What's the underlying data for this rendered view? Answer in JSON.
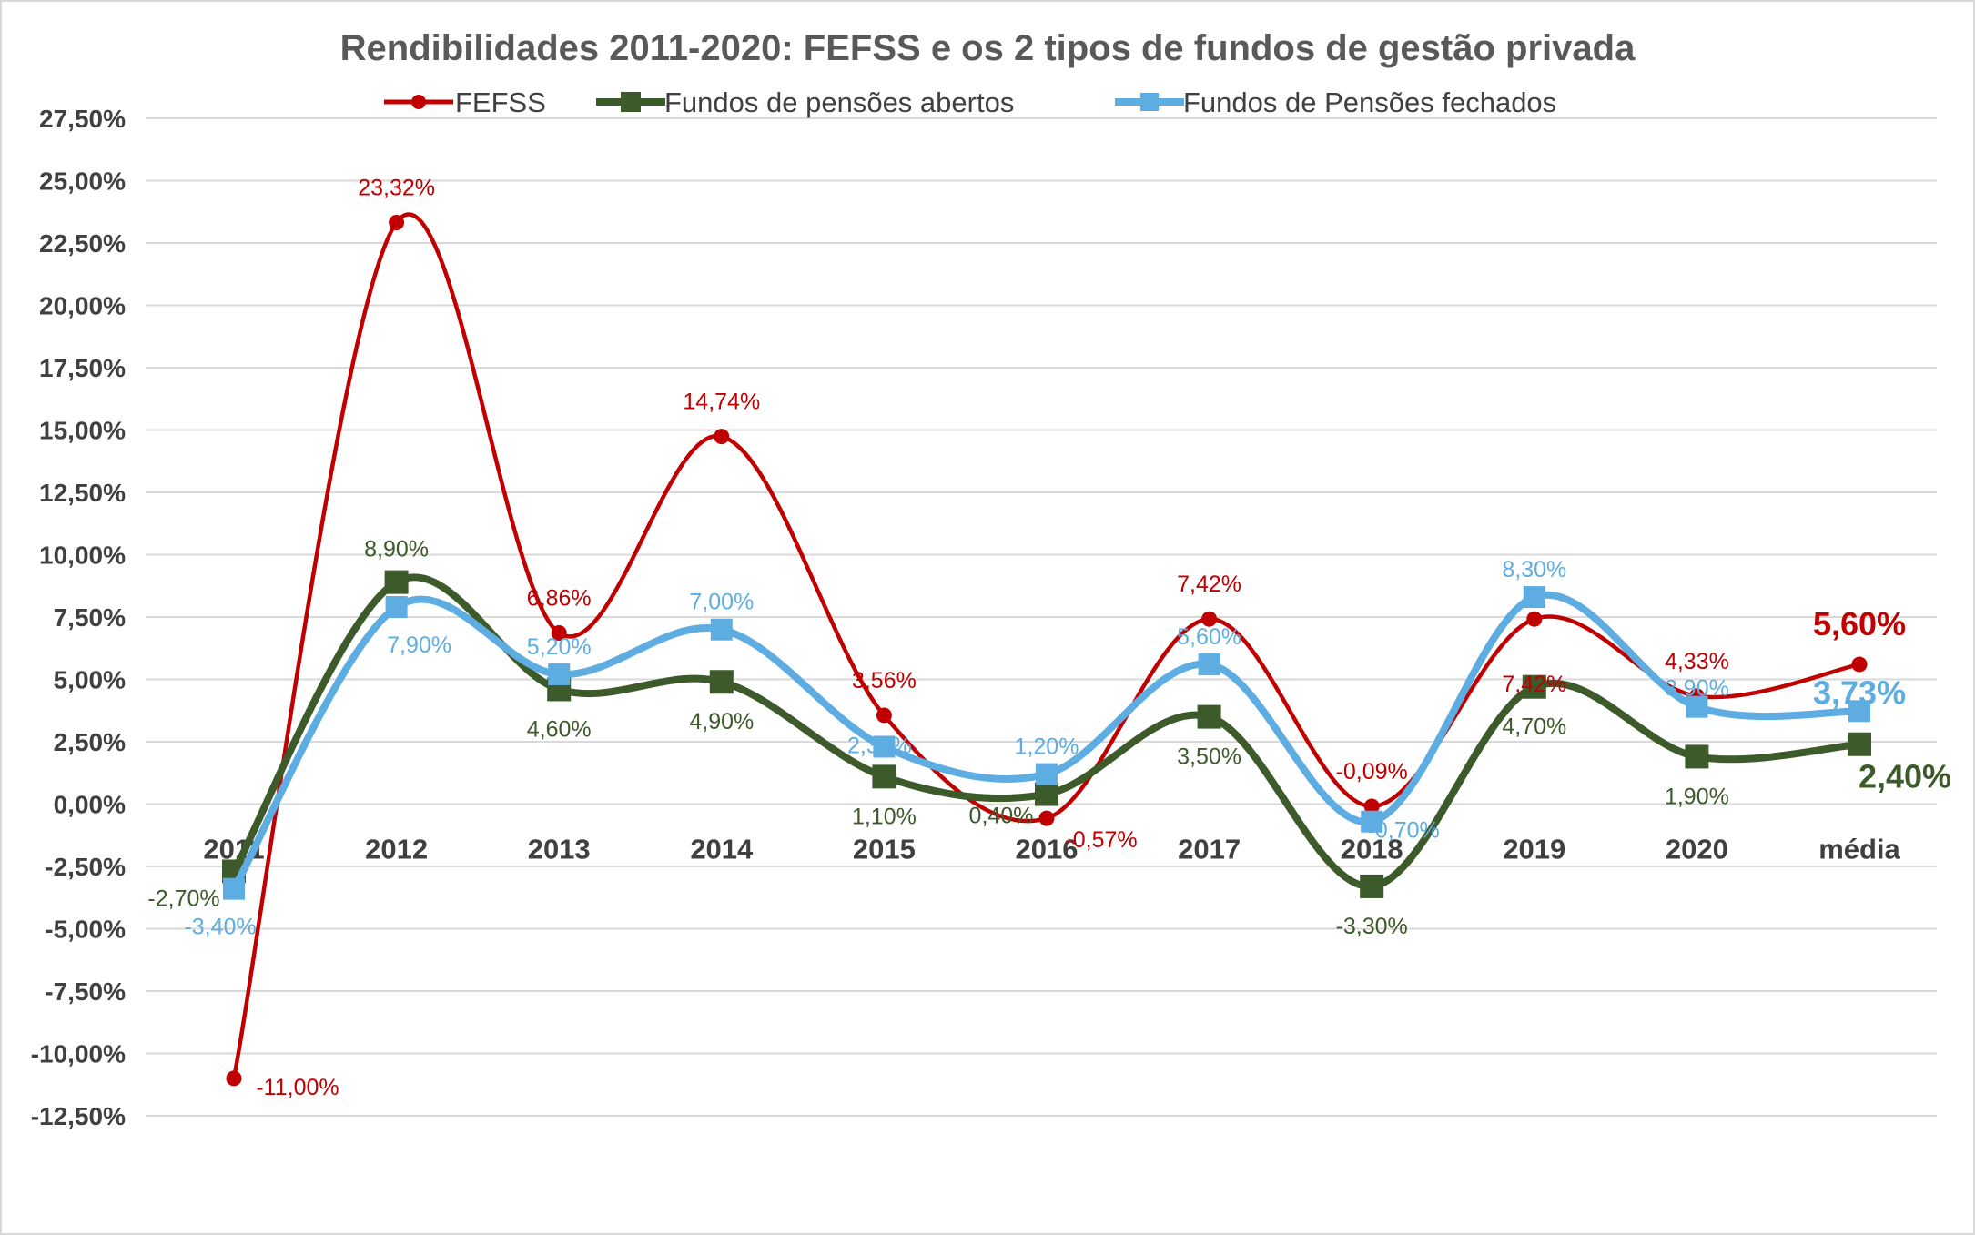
{
  "chart_data": {
    "type": "line",
    "title": "Rendibilidades 2011-2020: FEFSS e os 2 tipos de fundos de gestão privada",
    "categories": [
      "2011",
      "2012",
      "2013",
      "2014",
      "2015",
      "2016",
      "2017",
      "2018",
      "2019",
      "2020",
      "média"
    ],
    "ylim": [
      -12.5,
      27.5
    ],
    "ytick_step": 2.5,
    "ytick_labels": [
      "27,50%",
      "25,00%",
      "22,50%",
      "20,00%",
      "17,50%",
      "15,00%",
      "12,50%",
      "10,00%",
      "7,50%",
      "5,00%",
      "2,50%",
      "0,00%",
      "-2,50%",
      "-5,00%",
      "-7,50%",
      "-10,00%",
      "-12,50%"
    ],
    "grid": true,
    "legend_position": "top",
    "series": [
      {
        "name": "FEFSS",
        "color": "#c00000",
        "marker": "circle",
        "values": [
          -11.0,
          23.32,
          6.86,
          14.74,
          3.56,
          -0.57,
          7.42,
          -0.09,
          7.42,
          4.33,
          5.6
        ],
        "labels": [
          "-11,00%",
          "23,32%",
          "6,86%",
          "14,74%",
          "3,56%",
          "-0,57%",
          "7,42%",
          "-0,09%",
          "7,42%",
          "4,33%",
          "5,60%"
        ]
      },
      {
        "name": "Fundos de pensões abertos",
        "color": "#3d5a2a",
        "marker": "square",
        "values": [
          -2.7,
          8.9,
          4.6,
          4.9,
          1.1,
          0.4,
          3.5,
          -3.3,
          4.7,
          1.9,
          2.4
        ],
        "labels": [
          "-2,70%",
          "8,90%",
          "4,60%",
          "4,90%",
          "1,10%",
          "0,40%",
          "3,50%",
          "-3,30%",
          "4,70%",
          "1,90%",
          "2,40%"
        ]
      },
      {
        "name": "Fundos de Pensões fechados",
        "color": "#5dade2",
        "marker": "square",
        "values": [
          -3.4,
          7.9,
          5.2,
          7.0,
          2.3,
          1.2,
          5.6,
          -0.7,
          8.3,
          3.9,
          3.73
        ],
        "labels": [
          "-3,40%",
          "7,90%",
          "5,20%",
          "7,00%",
          "2,30%",
          "1,20%",
          "5,60%",
          "-0,70%",
          "8,30%",
          "3,90%",
          "3,73%"
        ]
      }
    ]
  }
}
